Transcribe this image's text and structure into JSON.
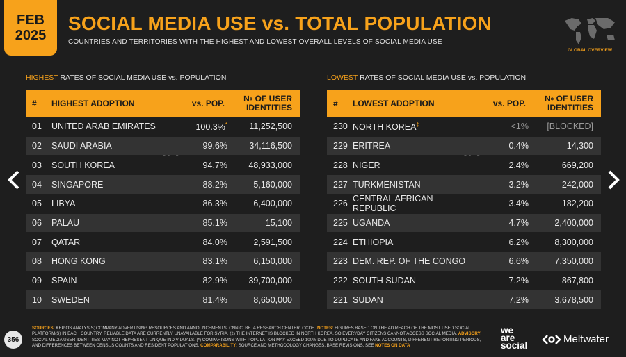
{
  "badge": {
    "month": "FEB",
    "year": "2025"
  },
  "header": {
    "title": "SOCIAL MEDIA USE vs. TOTAL POPULATION",
    "subtitle": "COUNTRIES AND TERRITORIES WITH THE HIGHEST AND LOWEST OVERALL LEVELS OF SOCIAL MEDIA USE",
    "map_caption": "GLOBAL OVERVIEW"
  },
  "highest": {
    "label_highlight": "HIGHEST",
    "label_rest": " RATES OF SOCIAL MEDIA USE vs. POPULATION",
    "headers": {
      "num": "#",
      "name": "HIGHEST ADOPTION",
      "pct": "vs. POP.",
      "users": "№ OF USER IDENTITIES"
    },
    "rows": [
      {
        "rank": "01",
        "name": "UNITED ARAB EMIRATES",
        "pct": "100.3%",
        "users": "11,252,500"
      },
      {
        "rank": "02",
        "name": "SAUDI ARABIA",
        "pct": "99.6%",
        "users": "34,116,500"
      },
      {
        "rank": "03",
        "name": "SOUTH KOREA",
        "pct": "94.7%",
        "users": "48,933,000"
      },
      {
        "rank": "04",
        "name": "SINGAPORE",
        "pct": "88.2%",
        "users": "5,160,000"
      },
      {
        "rank": "05",
        "name": "LIBYA",
        "pct": "86.3%",
        "users": "6,400,000"
      },
      {
        "rank": "06",
        "name": "PALAU",
        "pct": "85.1%",
        "users": "15,100"
      },
      {
        "rank": "07",
        "name": "QATAR",
        "pct": "84.0%",
        "users": "2,591,500"
      },
      {
        "rank": "08",
        "name": "HONG KONG",
        "pct": "83.1%",
        "users": "6,150,000"
      },
      {
        "rank": "09",
        "name": "SPAIN",
        "pct": "82.9%",
        "users": "39,700,000"
      },
      {
        "rank": "10",
        "name": "SWEDEN",
        "pct": "81.4%",
        "users": "8,650,000"
      }
    ]
  },
  "lowest": {
    "label_highlight": "LOWEST",
    "label_rest": " RATES OF SOCIAL MEDIA USE vs. POPULATION",
    "headers": {
      "num": "#",
      "name": "LOWEST ADOPTION",
      "pct": "vs. POP.",
      "users": "№ OF USER IDENTITIES"
    },
    "rows": [
      {
        "rank": "230",
        "name": "NORTH KOREA",
        "pct": "<1%",
        "users": "[BLOCKED]"
      },
      {
        "rank": "229",
        "name": "ERITREA",
        "pct": "0.4%",
        "users": "14,300"
      },
      {
        "rank": "228",
        "name": "NIGER",
        "pct": "2.4%",
        "users": "669,200"
      },
      {
        "rank": "227",
        "name": "TURKMENISTAN",
        "pct": "3.2%",
        "users": "242,000"
      },
      {
        "rank": "226",
        "name": "CENTRAL AFRICAN REPUBLIC",
        "pct": "3.4%",
        "users": "182,200"
      },
      {
        "rank": "225",
        "name": "UGANDA",
        "pct": "4.7%",
        "users": "2,400,000"
      },
      {
        "rank": "224",
        "name": "ETHIOPIA",
        "pct": "6.2%",
        "users": "8,300,000"
      },
      {
        "rank": "223",
        "name": "DEM. REP. OF THE CONGO",
        "pct": "6.6%",
        "users": "7,350,000"
      },
      {
        "rank": "222",
        "name": "SOUTH SUDAN",
        "pct": "7.2%",
        "users": "867,800"
      },
      {
        "rank": "221",
        "name": "SUDAN",
        "pct": "7.2%",
        "users": "3,678,500"
      }
    ]
  },
  "footer": {
    "page": "356",
    "sources_label": "SOURCES:",
    "sources_text": " KEPIOS ANALYSIS; COMPANY ADVERTISING RESOURCES AND ANNOUNCEMENTS; CNNIC; BETA RESEARCH CENTER; OCDH. ",
    "notes_label": "NOTES:",
    "notes_text": " FIGURES BASED ON THE AD REACH OF THE MOST USED SOCIAL PLATFORM(S) IN EACH COUNTRY. RELIABLE DATA ARE CURRENTLY UNAVAILABLE FOR SYRIA. (‡) THE INTERNET IS BLOCKED IN NORTH KOREA, SO EVERYDAY CITIZENS CANNOT ACCESS SOCIAL MEDIA. ",
    "advisory_label": "ADVISORY:",
    "advisory_text": " SOCIAL MEDIA USER IDENTITIES MAY NOT REPRESENT UNIQUE INDIVIDUALS. (*) COMPARISONS WITH POPULATION MAY EXCEED 100% DUE TO DUPLICATE AND FAKE ACCOUNTS, DIFFERENT REPORTING PERIODS, AND DIFFERENCES BETWEEN CENSUS COUNTS AND RESIDENT POPULATIONS. ",
    "comparability_label": "COMPARABILITY:",
    "comparability_text": " SOURCE AND METHODOLOGY CHANGES, BASE REVISIONS. SEE ",
    "notes_on_data": "NOTES ON DATA",
    "brand1_line1": "we",
    "brand1_line2": "are",
    "brand1_line3": "social",
    "brand2": "Meltwater"
  },
  "colors": {
    "accent": "#f7a21b",
    "background": "#1e1e1e",
    "row_alt": "#333333"
  },
  "icons": [
    "chevron-left-icon",
    "chevron-right-icon",
    "world-map-icon",
    "watermark-icon",
    "meltwater-logo-icon"
  ]
}
